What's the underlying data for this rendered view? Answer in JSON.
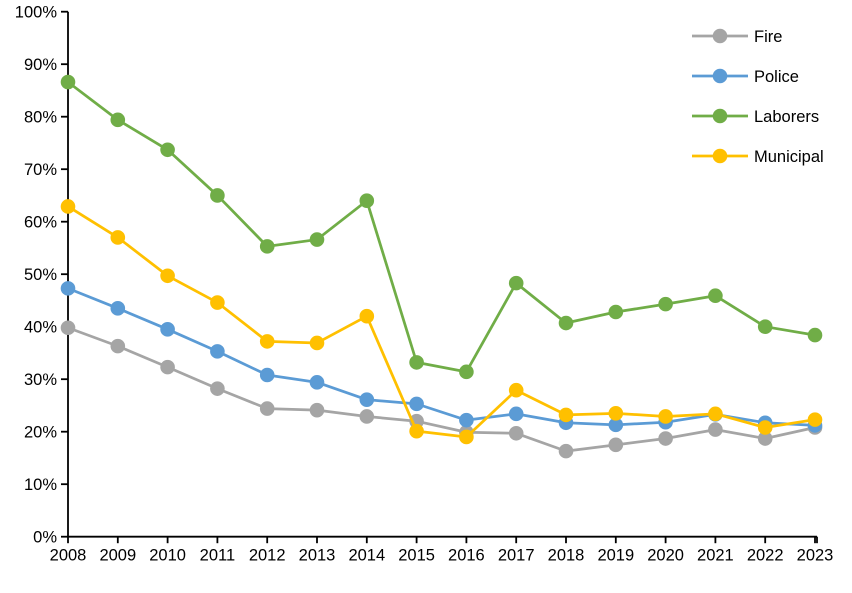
{
  "chart_data": {
    "type": "line",
    "title": "",
    "xlabel": "",
    "ylabel": "",
    "x": [
      "2008",
      "2009",
      "2010",
      "2011",
      "2012",
      "2013",
      "2014",
      "2015",
      "2016",
      "2017",
      "2018",
      "2019",
      "2020",
      "2021",
      "2022",
      "2023"
    ],
    "series": [
      {
        "name": "Fire",
        "color": "#a5a5a5",
        "values": [
          39.8,
          36.3,
          32.3,
          28.2,
          24.4,
          24.1,
          22.9,
          22.0,
          19.9,
          19.7,
          16.3,
          17.5,
          18.7,
          20.4,
          18.7,
          20.8
        ]
      },
      {
        "name": "Police",
        "color": "#5b9bd5",
        "values": [
          47.3,
          43.5,
          39.5,
          35.3,
          30.8,
          29.4,
          26.1,
          25.3,
          22.2,
          23.4,
          21.7,
          21.3,
          21.8,
          23.3,
          21.7,
          21.2
        ]
      },
      {
        "name": "Laborers",
        "color": "#70ad47",
        "values": [
          86.6,
          79.4,
          73.7,
          65.0,
          55.3,
          56.6,
          64.0,
          33.2,
          31.4,
          48.3,
          40.7,
          42.8,
          44.3,
          45.9,
          40.0,
          38.4
        ]
      },
      {
        "name": "Municipal",
        "color": "#ffc000",
        "values": [
          62.9,
          57.0,
          49.7,
          44.6,
          37.2,
          36.9,
          42.0,
          20.1,
          19.0,
          27.9,
          23.2,
          23.5,
          22.9,
          23.4,
          20.8,
          22.3
        ]
      }
    ],
    "ylim": [
      0,
      100
    ],
    "y_tick_step": 10,
    "y_tick_labels": [
      "0%",
      "10%",
      "20%",
      "30%",
      "40%",
      "50%",
      "60%",
      "70%",
      "80%",
      "90%",
      "100%"
    ],
    "grid": false,
    "legend_position": "top-right",
    "legend_labels": [
      "Fire",
      "Police",
      "Laborers",
      "Municipal"
    ],
    "marker": "circle",
    "axis_color": "#000000",
    "background_color": "#ffffff"
  }
}
